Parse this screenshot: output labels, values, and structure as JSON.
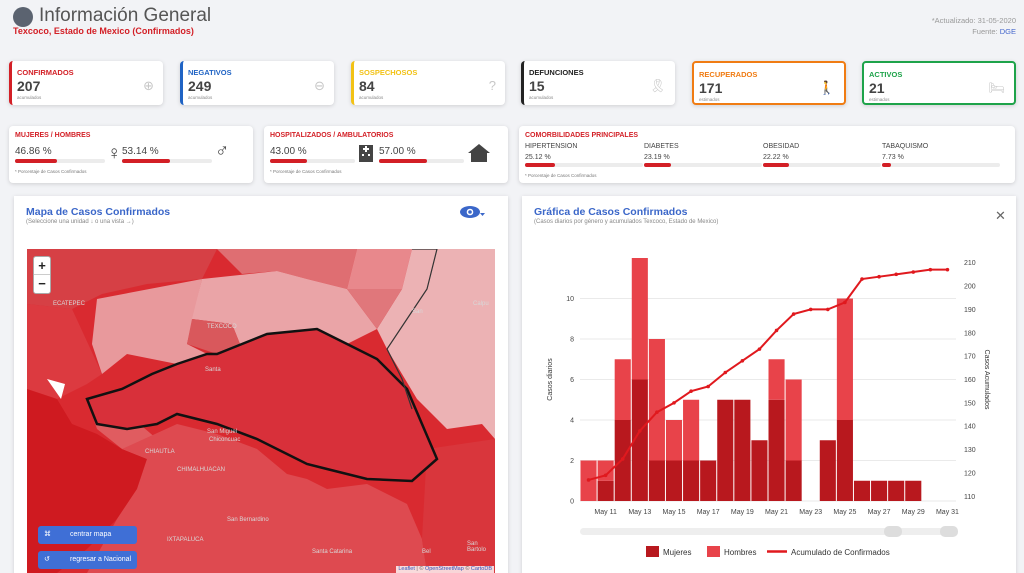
{
  "header": {
    "title": "Información General",
    "subtitle": "Texcoco, Estado de Mexico (Confirmados)",
    "updated": "*Actualizado: 31-05-2020",
    "source_label": "Fuente:",
    "source_link": "DGE"
  },
  "stats": [
    {
      "label": "CONFIRMADOS",
      "value": "207",
      "sub": "acumulados",
      "color": "#d31f26",
      "icon": "plus-circle-icon"
    },
    {
      "label": "NEGATIVOS",
      "value": "249",
      "sub": "acumulados",
      "color": "#1f63c4",
      "icon": "minus-circle-icon"
    },
    {
      "label": "SOSPECHOSOS",
      "value": "84",
      "sub": "acumulados",
      "color": "#f2c215",
      "icon": "question-circle-icon"
    },
    {
      "label": "DEFUNCIONES",
      "value": "15",
      "sub": "acumulados",
      "color": "#222222",
      "icon": "ribbon-icon"
    },
    {
      "label": "RECUPERADOS",
      "value": "171",
      "sub": "estimados",
      "color": "#f07c13",
      "icon": "walking-icon"
    },
    {
      "label": "ACTIVOS",
      "value": "21",
      "sub": "estimados",
      "color": "#1ea34a",
      "icon": "bed-icon"
    }
  ],
  "gender": {
    "label": "MUJERES / HOMBRES",
    "women_pct": "46.86 %",
    "men_pct": "53.14 %",
    "women_frac": 0.4686,
    "men_frac": 0.5314,
    "foot": "* Porcentaje de Casos Confirmados"
  },
  "hosp": {
    "label": "HOSPITALIZADOS / AMBULATORIOS",
    "hosp_pct": "43.00 %",
    "amb_pct": "57.00 %",
    "hosp_frac": 0.43,
    "amb_frac": 0.57,
    "foot": "* Porcentaje de Casos Confirmados"
  },
  "comorb": {
    "label": "COMORBILIDADES PRINCIPALES",
    "foot": "* Porcentaje de Casos Confirmados",
    "items": [
      {
        "name": "HIPERTENSION",
        "pct": "25.12 %",
        "frac": 0.2512
      },
      {
        "name": "DIABETES",
        "pct": "23.19 %",
        "frac": 0.2319
      },
      {
        "name": "OBESIDAD",
        "pct": "22.22 %",
        "frac": 0.2222
      },
      {
        "name": "TABAQUISMO",
        "pct": "7.73 %",
        "frac": 0.0773
      }
    ]
  },
  "map": {
    "title": "Mapa de Casos Confirmados",
    "subtitle": "(Seleccione una unidad ↓ o una vista →)",
    "zoom_in": "+",
    "zoom_out": "−",
    "btn_center": "centrar mapa",
    "btn_back": "regresar a Nacional",
    "attrib_leaflet": "Leaflet",
    "attrib_sep": " | © ",
    "attrib_osm": "OpenStreetMap",
    "attrib_carto": "CartoDB",
    "place_labels": [
      "ECATEPEC",
      "Calpu",
      "TEXCOCO",
      "Santa",
      "San Miguel",
      "Chiconcuac",
      "CHIAUTLA",
      "Santa Catarina",
      "CHIMALHUACAN",
      "IXTAPALUCA",
      "San Bernardino",
      "San Bartolo",
      "San",
      "Bel"
    ]
  },
  "chart_panel": {
    "title": "Gráfica de Casos Confirmados",
    "subtitle": "(Casos diarios por género y acumulados Texcoco, Estado de Mexico)"
  },
  "chart_data": {
    "type": "bar",
    "categories": [
      "May 10",
      "May 11",
      "May 12",
      "May 13",
      "May 14",
      "May 15",
      "May 16",
      "May 17",
      "May 18",
      "May 19",
      "May 20",
      "May 21",
      "May 22",
      "May 23",
      "May 24",
      "May 25",
      "May 26",
      "May 27",
      "May 28",
      "May 29",
      "May 30",
      "May 31"
    ],
    "tick_labels": [
      "May 11",
      "May 13",
      "May 15",
      "May 17",
      "May 19",
      "May 21",
      "May 23",
      "May 25",
      "May 27",
      "May 29",
      "May 31"
    ],
    "series": [
      {
        "name": "Mujeres",
        "type": "bar",
        "axis": "left",
        "color": "#b8181e",
        "values": [
          0,
          1,
          4,
          6,
          2,
          2,
          2,
          2,
          5,
          5,
          3,
          5,
          2,
          0,
          3,
          4,
          1,
          1,
          1,
          1,
          0,
          0
        ]
      },
      {
        "name": "Hombres",
        "type": "bar",
        "axis": "left",
        "color": "#e8434a",
        "values": [
          2,
          1,
          3,
          6,
          6,
          2,
          3,
          0,
          0,
          0,
          0,
          2,
          4,
          0,
          0,
          6,
          0,
          0,
          0,
          0,
          0,
          0
        ]
      },
      {
        "name": "Acumulado de Confirmados",
        "type": "line",
        "axis": "right",
        "color": "#e0191e",
        "values": [
          117,
          119,
          126,
          138,
          146,
          150,
          155,
          157,
          163,
          168,
          173,
          181,
          188,
          190,
          190,
          193,
          203,
          204,
          205,
          206,
          207,
          207
        ]
      }
    ],
    "ylabel_left": "Casos diarios",
    "ylim_left": [
      0,
      12
    ],
    "yticks_left": [
      0,
      2,
      4,
      6,
      8,
      10
    ],
    "ylabel_right": "Casos Acumulados",
    "ylim_right": [
      108,
      212
    ],
    "yticks_right": [
      110,
      120,
      130,
      140,
      150,
      160,
      170,
      180,
      190,
      200,
      210
    ],
    "legend_position": "bottom",
    "grid": true
  }
}
